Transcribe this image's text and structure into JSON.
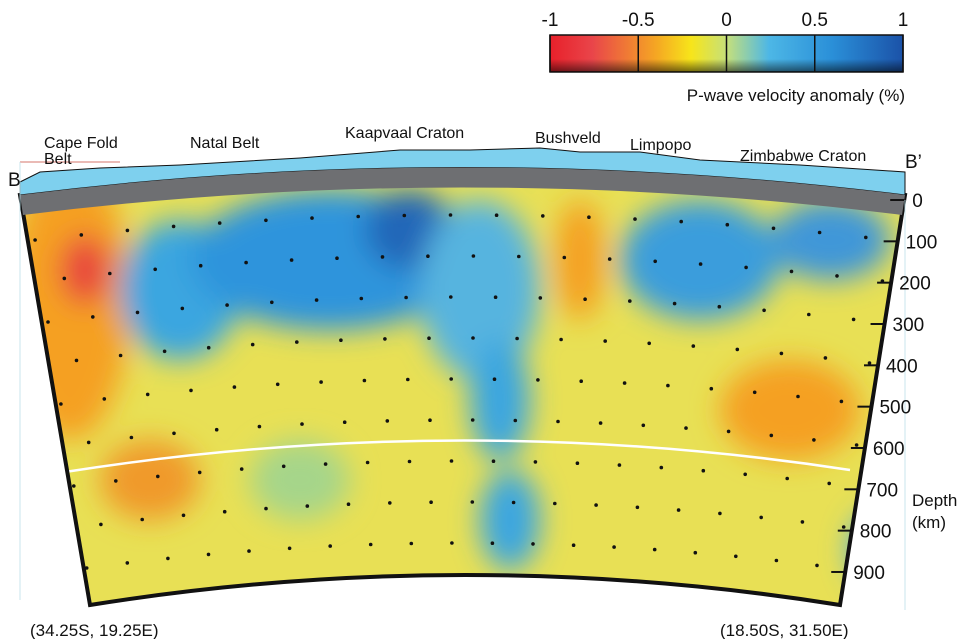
{
  "colorbar": {
    "ticks": [
      -1,
      -0.5,
      0,
      0.5,
      1
    ],
    "label": "P-wave velocity anomaly (%)"
  },
  "section": {
    "regions": [
      [
        "Cape Fold",
        "Belt"
      ],
      [
        "Natal Belt"
      ],
      [
        "Kaapvaal Craton"
      ],
      [
        "Bushveld"
      ],
      [
        "Limpopo"
      ],
      [
        "Zimbabwe Craton"
      ]
    ],
    "left_end": "B",
    "right_end": "B’",
    "depth_ticks": [
      0,
      100,
      200,
      300,
      400,
      500,
      600,
      700,
      800,
      900
    ],
    "depth_label": [
      "Depth",
      "(km)"
    ],
    "left_coord": "(34.25S, 19.25E)",
    "right_coord": "(18.50S, 31.50E)"
  }
}
